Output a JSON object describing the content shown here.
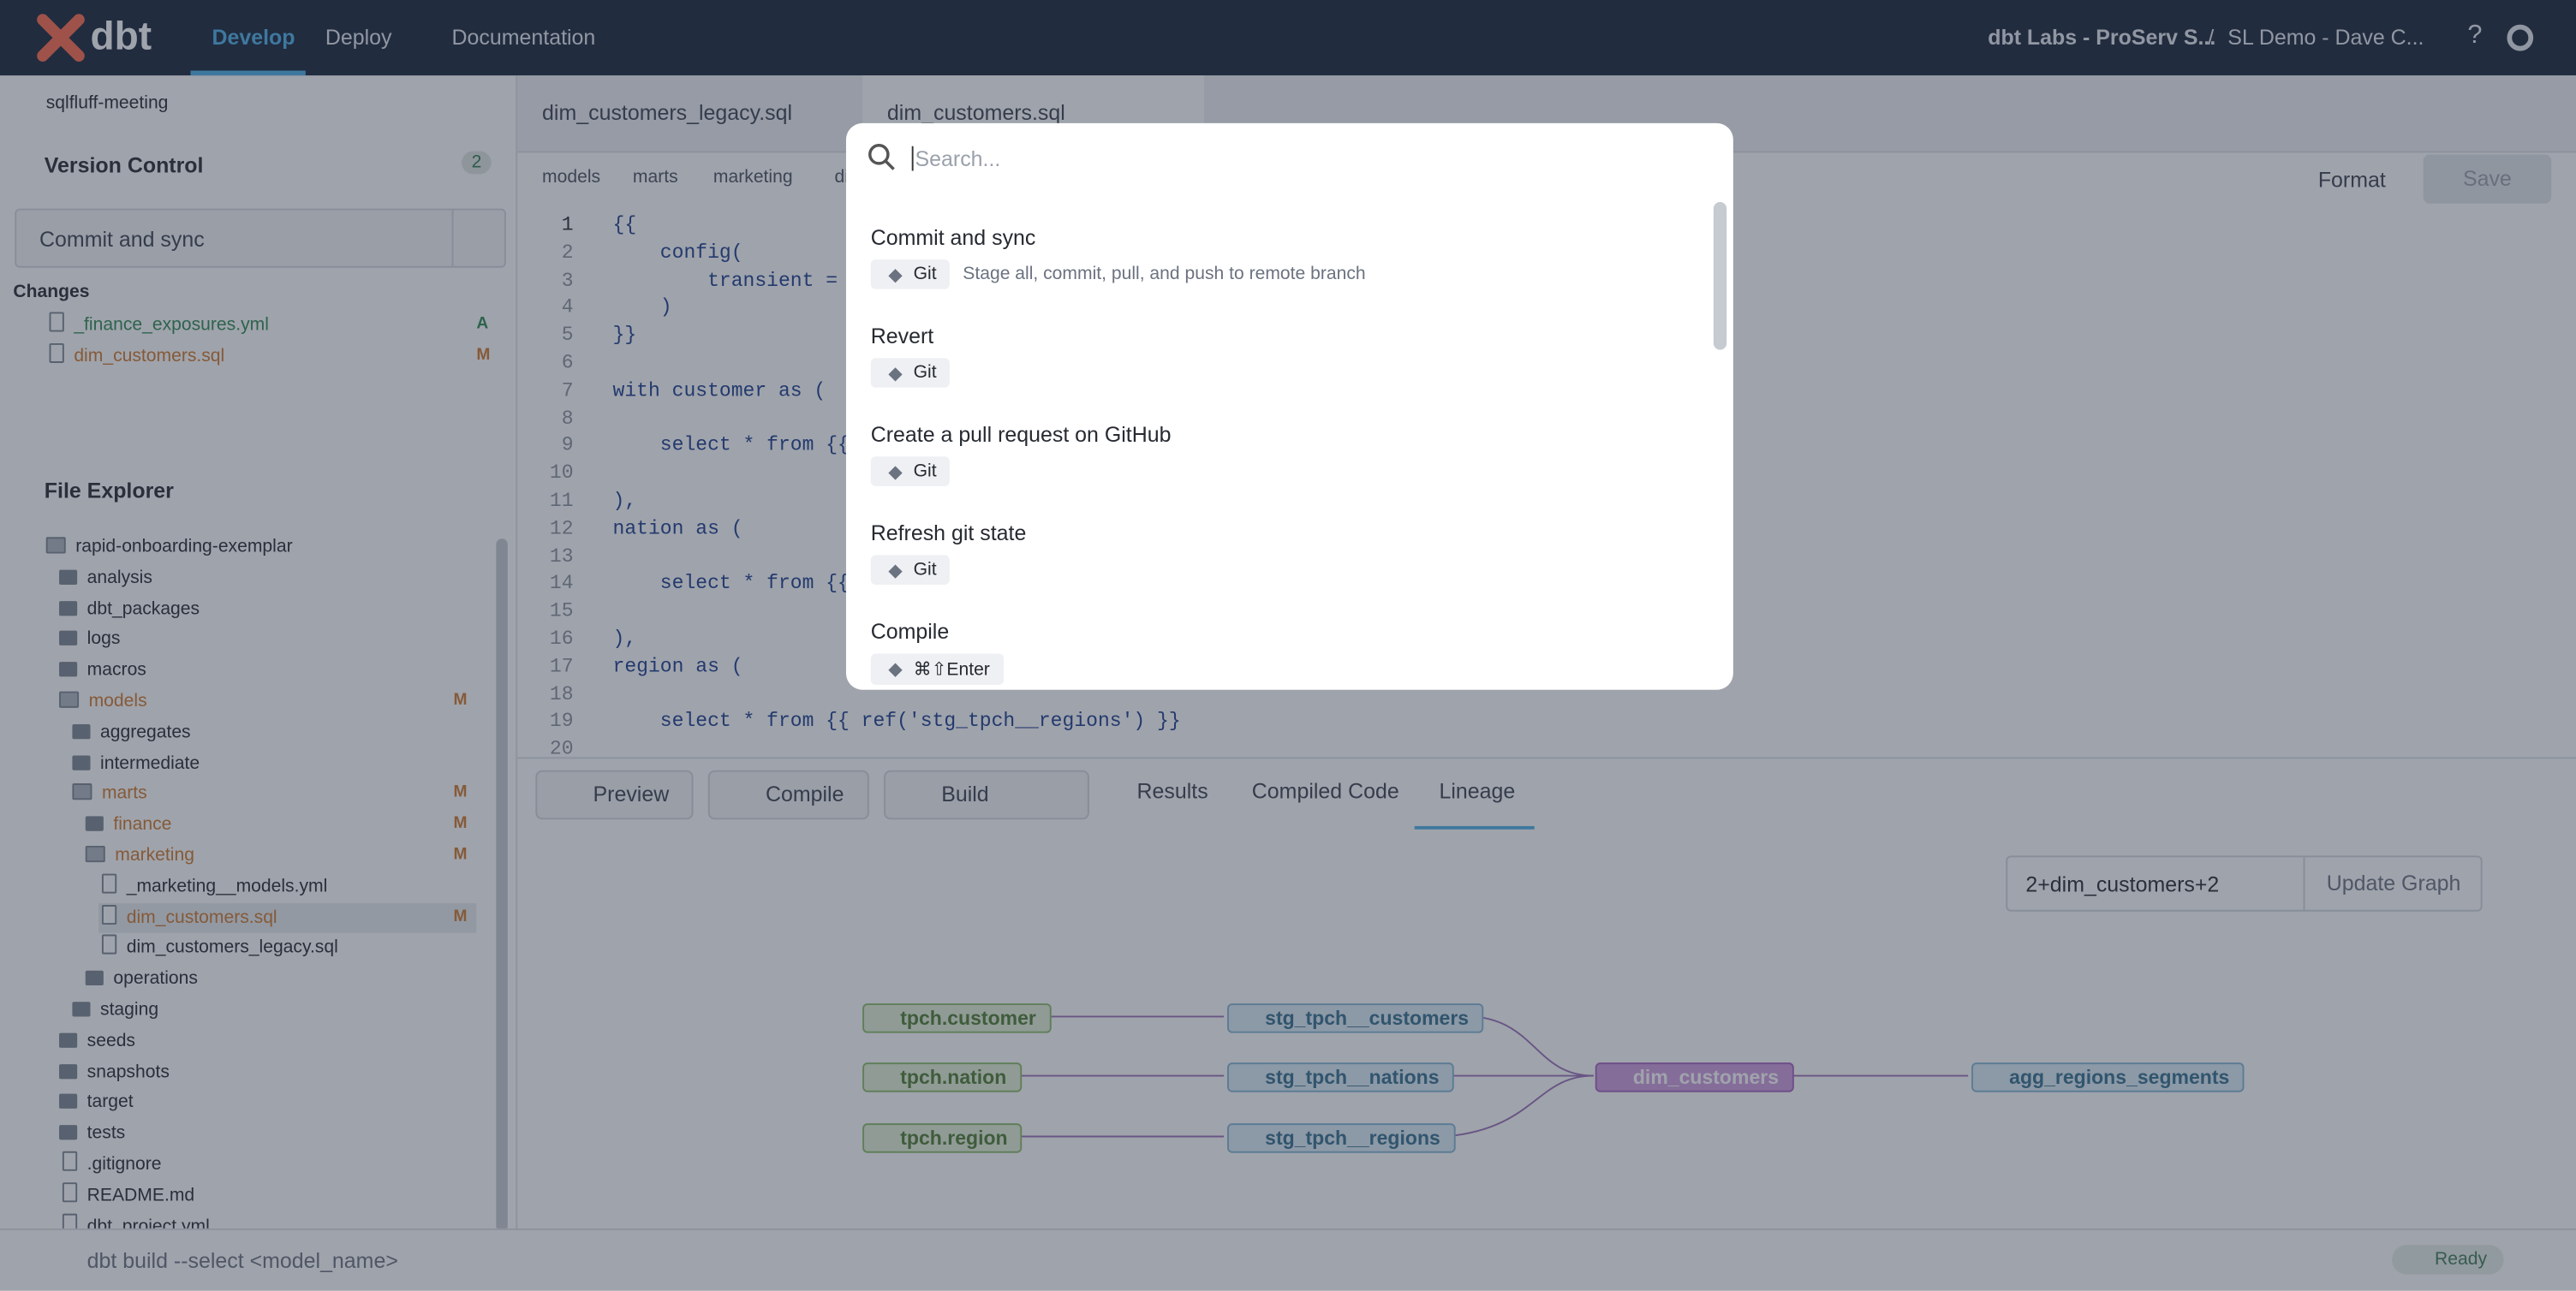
{
  "topbar": {
    "logo": "dbt",
    "nav": [
      "Develop",
      "Deploy",
      "Documentation"
    ],
    "account": "dbt Labs - ProServ S...",
    "separator": "/",
    "project": "SL Demo - Dave C..."
  },
  "sidebar": {
    "branch": "sqlfluff-meeting",
    "version_control": {
      "title": "Version Control",
      "count": 2,
      "action": "Commit and sync",
      "changes_title": "Changes",
      "changes": [
        {
          "file": "_finance_exposures.yml",
          "status": "A"
        },
        {
          "file": "dim_customers.sql",
          "status": "M"
        }
      ]
    },
    "file_explorer": {
      "title": "File Explorer",
      "tree": [
        {
          "label": "rapid-onboarding-exemplar",
          "children": [
            {
              "label": "analysis",
              "children": []
            },
            {
              "label": "dbt_packages",
              "children": []
            },
            {
              "label": "logs",
              "children": []
            },
            {
              "label": "macros",
              "children": []
            },
            {
              "label": "models",
              "status": "M",
              "children": [
                {
                  "label": "aggregates",
                  "children": []
                },
                {
                  "label": "intermediate",
                  "children": []
                },
                {
                  "label": "marts",
                  "status": "M",
                  "children": [
                    {
                      "label": "finance",
                      "status": "M",
                      "children": []
                    },
                    {
                      "label": "marketing",
                      "status": "M",
                      "children": [
                        {
                          "label": "_marketing__models.yml"
                        },
                        {
                          "label": "dim_customers.sql",
                          "status": "M"
                        },
                        {
                          "label": "dim_customers_legacy.sql"
                        }
                      ]
                    },
                    {
                      "label": "operations",
                      "children": []
                    }
                  ]
                },
                {
                  "label": "staging",
                  "children": []
                }
              ]
            },
            {
              "label": "seeds",
              "children": []
            },
            {
              "label": "snapshots",
              "children": []
            },
            {
              "label": "target",
              "children": []
            },
            {
              "label": "tests",
              "children": []
            },
            {
              "label": ".gitignore"
            },
            {
              "label": "README.md"
            },
            {
              "label": "dbt_project.yml"
            }
          ]
        }
      ]
    }
  },
  "editor": {
    "tabs": [
      "dim_customers_legacy.sql",
      "dim_customers.sql"
    ],
    "breadcrumbs": [
      "models",
      "marts",
      "marketing",
      "dim_c"
    ],
    "format": "Format",
    "save": "Save",
    "lines": [
      {
        "number": 1,
        "text": "{{"
      },
      {
        "number": 2,
        "text": "    config("
      },
      {
        "number": 3,
        "text": "        transient = false"
      },
      {
        "number": 4,
        "text": "    )"
      },
      {
        "number": 5,
        "text": "}}"
      },
      {
        "number": 6,
        "text": ""
      },
      {
        "number": 7,
        "text": "with customer as ("
      },
      {
        "number": 8,
        "text": ""
      },
      {
        "number": 9,
        "text": "    select * from {{ ref('stg_tpch__customers') }}"
      },
      {
        "number": 10,
        "text": ""
      },
      {
        "number": 11,
        "text": "),"
      },
      {
        "number": 12,
        "text": "nation as ("
      },
      {
        "number": 13,
        "text": ""
      },
      {
        "number": 14,
        "text": "    select * from {{ ref('stg_tpch__nations') }}"
      },
      {
        "number": 15,
        "text": ""
      },
      {
        "number": 16,
        "text": "),"
      },
      {
        "number": 17,
        "text": "region as ("
      },
      {
        "number": 18,
        "text": ""
      },
      {
        "number": 19,
        "text": "    select * from {{ ref('stg_tpch__regions') }}"
      },
      {
        "number": 20,
        "text": ""
      }
    ]
  },
  "panel": {
    "buttons": [
      "Preview",
      "Compile",
      "Build"
    ],
    "tabs": [
      "Results",
      "Compiled Code",
      "Lineage"
    ],
    "selector": "2+dim_customers+2",
    "update": "Update Graph",
    "nodes": [
      "tpch.customer",
      "tpch.nation",
      "tpch.region",
      "stg_tpch__customers",
      "stg_tpch__nations",
      "stg_tpch__regions",
      "dim_customers",
      "agg_regions_segments"
    ]
  },
  "statusbar": {
    "command": "dbt build --select <model_name>",
    "status": "Ready"
  },
  "palette": {
    "placeholder": "Search...",
    "items": [
      {
        "title": "Commit and sync",
        "tag": "Git",
        "description": "Stage all, commit, pull, and push to remote branch"
      },
      {
        "title": "Revert",
        "tag": "Git"
      },
      {
        "title": "Create a pull request on GitHub",
        "tag": "Git"
      },
      {
        "title": "Refresh git state",
        "tag": "Git"
      },
      {
        "title": "Compile",
        "tag": "⌘⇧Enter"
      }
    ]
  }
}
